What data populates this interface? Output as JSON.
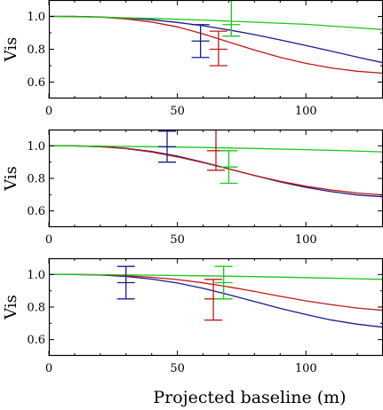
{
  "colors": {
    "blue": "#1a1a8c",
    "red": "#c01818",
    "green": "#19c819",
    "frame": "#000000"
  },
  "figure": {
    "xlabel": "Projected baseline (m)"
  },
  "chart_data": [
    {
      "type": "line",
      "ylabel": "Vis",
      "xlim": [
        0,
        130
      ],
      "ylim": [
        0.5,
        1.1
      ],
      "xticks": [
        0,
        50,
        100
      ],
      "yticks": [
        0.6,
        0.8,
        1.0
      ],
      "series": [
        {
          "color": "blue",
          "x": [
            0,
            10,
            20,
            30,
            40,
            50,
            60,
            70,
            80,
            90,
            100,
            110,
            120,
            130
          ],
          "y": [
            1.0,
            1.0,
            0.997,
            0.99,
            0.98,
            0.963,
            0.943,
            0.918,
            0.889,
            0.857,
            0.823,
            0.788,
            0.752,
            0.718
          ]
        },
        {
          "color": "red",
          "x": [
            0,
            10,
            20,
            30,
            40,
            50,
            60,
            70,
            80,
            90,
            100,
            110,
            120,
            130
          ],
          "y": [
            1.0,
            1.0,
            0.995,
            0.985,
            0.966,
            0.936,
            0.893,
            0.844,
            0.795,
            0.751,
            0.714,
            0.686,
            0.666,
            0.654
          ]
        },
        {
          "color": "green",
          "x": [
            0,
            20,
            40,
            60,
            80,
            100,
            130
          ],
          "y": [
            1.0,
            0.995,
            0.988,
            0.978,
            0.965,
            0.952,
            0.92
          ]
        }
      ],
      "errorbars": [
        {
          "color": "blue",
          "x": 59,
          "y": 0.85,
          "ylow": 0.75,
          "yhigh": 0.95
        },
        {
          "color": "red",
          "x": 66,
          "y": 0.8,
          "ylow": 0.7,
          "yhigh": 0.91
        },
        {
          "color": "green",
          "x": 71,
          "y": 0.95,
          "ylow": 0.88,
          "yhigh": 1.1
        }
      ]
    },
    {
      "type": "line",
      "ylabel": "Vis",
      "xlim": [
        0,
        130
      ],
      "ylim": [
        0.5,
        1.1
      ],
      "xticks": [
        0,
        50,
        100
      ],
      "yticks": [
        0.6,
        0.8,
        1.0
      ],
      "series": [
        {
          "color": "blue",
          "x": [
            0,
            10,
            20,
            30,
            40,
            50,
            60,
            70,
            80,
            90,
            100,
            110,
            120,
            130
          ],
          "y": [
            1.0,
            1.0,
            0.995,
            0.985,
            0.966,
            0.937,
            0.9,
            0.859,
            0.818,
            0.778,
            0.745,
            0.718,
            0.698,
            0.687
          ]
        },
        {
          "color": "red",
          "x": [
            0,
            10,
            20,
            30,
            40,
            50,
            60,
            70,
            80,
            90,
            100,
            110,
            120,
            130
          ],
          "y": [
            1.0,
            1.0,
            0.995,
            0.983,
            0.962,
            0.932,
            0.897,
            0.858,
            0.818,
            0.782,
            0.752,
            0.728,
            0.71,
            0.698
          ]
        },
        {
          "color": "green",
          "x": [
            0,
            20,
            40,
            60,
            80,
            100,
            130
          ],
          "y": [
            1.0,
            0.998,
            0.995,
            0.99,
            0.984,
            0.977,
            0.963
          ]
        }
      ],
      "errorbars": [
        {
          "color": "blue",
          "x": 46,
          "y": 0.995,
          "ylow": 0.9,
          "yhigh": 1.09
        },
        {
          "color": "red",
          "x": 65,
          "y": 0.97,
          "ylow": 0.85,
          "yhigh": 1.1
        },
        {
          "color": "green",
          "x": 70,
          "y": 0.87,
          "ylow": 0.77,
          "yhigh": 0.97
        }
      ]
    },
    {
      "type": "line",
      "ylabel": "Vis",
      "xlim": [
        0,
        130
      ],
      "ylim": [
        0.5,
        1.1
      ],
      "xticks": [
        0,
        50,
        100
      ],
      "yticks": [
        0.6,
        0.8,
        1.0
      ],
      "series": [
        {
          "color": "blue",
          "x": [
            0,
            10,
            20,
            30,
            40,
            50,
            60,
            70,
            80,
            90,
            100,
            110,
            120,
            130
          ],
          "y": [
            1.0,
            1.0,
            0.997,
            0.988,
            0.972,
            0.948,
            0.915,
            0.876,
            0.834,
            0.792,
            0.754,
            0.72,
            0.695,
            0.676
          ]
        },
        {
          "color": "red",
          "x": [
            0,
            10,
            20,
            30,
            40,
            50,
            60,
            70,
            80,
            90,
            100,
            110,
            120,
            130
          ],
          "y": [
            1.0,
            1.0,
            0.998,
            0.993,
            0.983,
            0.969,
            0.949,
            0.924,
            0.896,
            0.866,
            0.838,
            0.814,
            0.794,
            0.78
          ]
        },
        {
          "color": "green",
          "x": [
            0,
            20,
            40,
            60,
            80,
            100,
            130
          ],
          "y": [
            1.0,
            0.999,
            0.996,
            0.992,
            0.987,
            0.981,
            0.97
          ]
        }
      ],
      "errorbars": [
        {
          "color": "blue",
          "x": 30,
          "y": 0.95,
          "ylow": 0.85,
          "yhigh": 1.05
        },
        {
          "color": "red",
          "x": 64,
          "y": 0.85,
          "ylow": 0.72,
          "yhigh": 0.97
        },
        {
          "color": "green",
          "x": 68,
          "y": 0.95,
          "ylow": 0.85,
          "yhigh": 1.05
        }
      ]
    }
  ]
}
